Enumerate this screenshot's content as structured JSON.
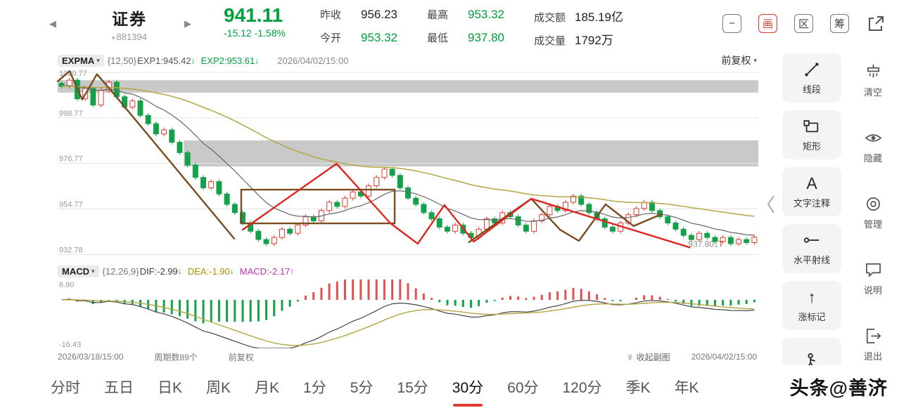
{
  "header": {
    "back": "◀",
    "forward": "▶",
    "title": "证券",
    "code_caret": "▾",
    "code": "881394",
    "price": "941.11",
    "change": "-15.12 -1.58%",
    "stats": [
      {
        "label": "昨收",
        "value": "956.23"
      },
      {
        "label": "今开",
        "value": "953.32"
      },
      {
        "label": "最高",
        "value": "953.32"
      },
      {
        "label": "最低",
        "value": "937.80"
      },
      {
        "label": "成交额",
        "value": "185.19亿"
      },
      {
        "label": "成交量",
        "value": "1792万"
      }
    ],
    "buttons": {
      "minimize": "−",
      "draw": "画",
      "range": "区",
      "chips": "筹"
    }
  },
  "expma_bar": {
    "indicator": "EXPMA",
    "caret": "▾",
    "params": "{12,50}",
    "exp1": "EXP1:945.42",
    "exp1_arrow": "↓",
    "exp2": "EXP2:953.61",
    "exp2_arrow": "↓",
    "datetime": "2026/04/02/15:00",
    "adjust": "前复权",
    "adjust_caret": "▾"
  },
  "macd_bar": {
    "indicator": "MACD",
    "caret": "▾",
    "params": "{12,26,9}",
    "dif": "DIF:-2.99",
    "dif_arrow": "↓",
    "dea": "DEA:-1.90",
    "dea_arrow": "↓",
    "macd": "MACD:-2.17",
    "macd_arrow": "↑"
  },
  "info_bar": {
    "start_time": "2026/03/18/15:00",
    "period_count": "周期数89个",
    "adjust": "前复权",
    "collapse_icon": "≫",
    "collapse": "收起副图",
    "end_time": "2026/04/02/15:00"
  },
  "draw_tools": [
    {
      "icon": "line-segment",
      "label": "线段"
    },
    {
      "icon": "rectangle",
      "label": "矩形"
    },
    {
      "icon": "text-annotation",
      "label": "文字注释"
    },
    {
      "icon": "horizontal-ray",
      "label": "水平射线"
    },
    {
      "icon": "rise-mark",
      "label": "涨标记"
    },
    {
      "icon": "person",
      "label": ""
    }
  ],
  "text_annotation_glyph": "A",
  "rise_mark_glyph": "↑",
  "panel_actions": [
    {
      "icon": "clear",
      "label": "清空"
    },
    {
      "icon": "hide",
      "label": "隐藏"
    },
    {
      "icon": "manage",
      "label": "管理"
    },
    {
      "icon": "info",
      "label": "说明"
    },
    {
      "icon": "exit",
      "label": "退出"
    }
  ],
  "tabs": [
    "分时",
    "五日",
    "日K",
    "周K",
    "月K",
    "1分",
    "5分",
    "15分",
    "30分",
    "60分",
    "120分",
    "季K",
    "年K"
  ],
  "active_tab": "30分",
  "watermark": "头条@善济",
  "chart_data": {
    "type": "candlestick",
    "symbol": "证券 881394",
    "period": "30分",
    "bar_count": 89,
    "time_range": [
      "2026/03/18/15:00",
      "2026/04/02/15:00"
    ],
    "y_axis_labels": [
      "1020.77",
      "998.77",
      "976.77",
      "954.77",
      "932.78"
    ],
    "y_domain": [
      929.5,
      1022.5
    ],
    "closes": [
      1014,
      1017,
      1008,
      1013,
      1005,
      1012,
      1016,
      1009,
      1004,
      1007,
      1000,
      996,
      991,
      993,
      987,
      982,
      976,
      970,
      965,
      968,
      962,
      957,
      953,
      948,
      944,
      940,
      938,
      941,
      945,
      943,
      947,
      951,
      949,
      954,
      958,
      956,
      960,
      963,
      961,
      966,
      970,
      974,
      971,
      965,
      960,
      957,
      953,
      950,
      946,
      944,
      947,
      943,
      941,
      945,
      950,
      948,
      953,
      951,
      947,
      944,
      949,
      952,
      956,
      954,
      958,
      961,
      957,
      953,
      950,
      946,
      944,
      948,
      952,
      955,
      958,
      954,
      951,
      948,
      945,
      942,
      940,
      943,
      941,
      939,
      941,
      938,
      940,
      938.5,
      941.11
    ],
    "ema_periods": [
      12,
      50
    ],
    "macd": {
      "periods": [
        12,
        26,
        9
      ],
      "max_label": "6.90",
      "min_label": "-16.43",
      "domain": [
        -16.43,
        6.9
      ]
    },
    "last_label": {
      "text": "937.80",
      "arrow": "↓",
      "tag": "T",
      "x": 0.9,
      "y": 0.925
    },
    "colors": {
      "up": "#e03b30",
      "down": "#15a04a",
      "ema_fast": "#666666",
      "ema_slow": "#b5a642",
      "band": "#c9c9c9",
      "hist_pos": "#e05050",
      "hist_neg": "#15a04a",
      "dif": "#444444",
      "dea": "#b5a642",
      "grid": "#e4e4e4",
      "axis_text": "#999999"
    },
    "annotations": {
      "bands": [
        {
          "x0": 0,
          "x1": 1,
          "p0": 1011.0,
          "p1": 1017.0
        },
        {
          "x0": 0.18,
          "x1": 1,
          "p0": 975.3,
          "p1": 987.9
        }
      ],
      "rects": [
        {
          "x0": 0.262,
          "x1": 0.481,
          "p0": 947.8,
          "p1": 964.1,
          "color": "#7a4a21"
        }
      ],
      "polylines": [
        {
          "color": "#7a4a21",
          "width": 2.4,
          "points": [
            [
              0,
              0.065
            ],
            [
              0.017,
              0.012
            ],
            [
              0.035,
              0.16
            ],
            [
              0.056,
              0.028
            ],
            [
              0.076,
              0.112
            ],
            [
              0.252,
              0.883
            ]
          ]
        },
        {
          "color": "#7a4a21",
          "width": 2.4,
          "points": [
            [
              0.587,
              0.901
            ],
            [
              0.676,
              0.675
            ],
            [
              0.717,
              0.836
            ],
            [
              0.744,
              0.894
            ],
            [
              0.782,
              0.704
            ],
            [
              0.822,
              0.817
            ],
            [
              0.862,
              0.755
            ]
          ]
        },
        {
          "color": "#e0251f",
          "width": 2.4,
          "points": [
            [
              0.264,
              0.836
            ],
            [
              0.398,
              0.493
            ],
            [
              0.475,
              0.803
            ],
            [
              0.514,
              0.909
            ],
            [
              0.552,
              0.708
            ],
            [
              0.594,
              0.898
            ],
            [
              0.676,
              0.675
            ],
            [
              0.902,
              0.928
            ]
          ]
        }
      ]
    }
  }
}
